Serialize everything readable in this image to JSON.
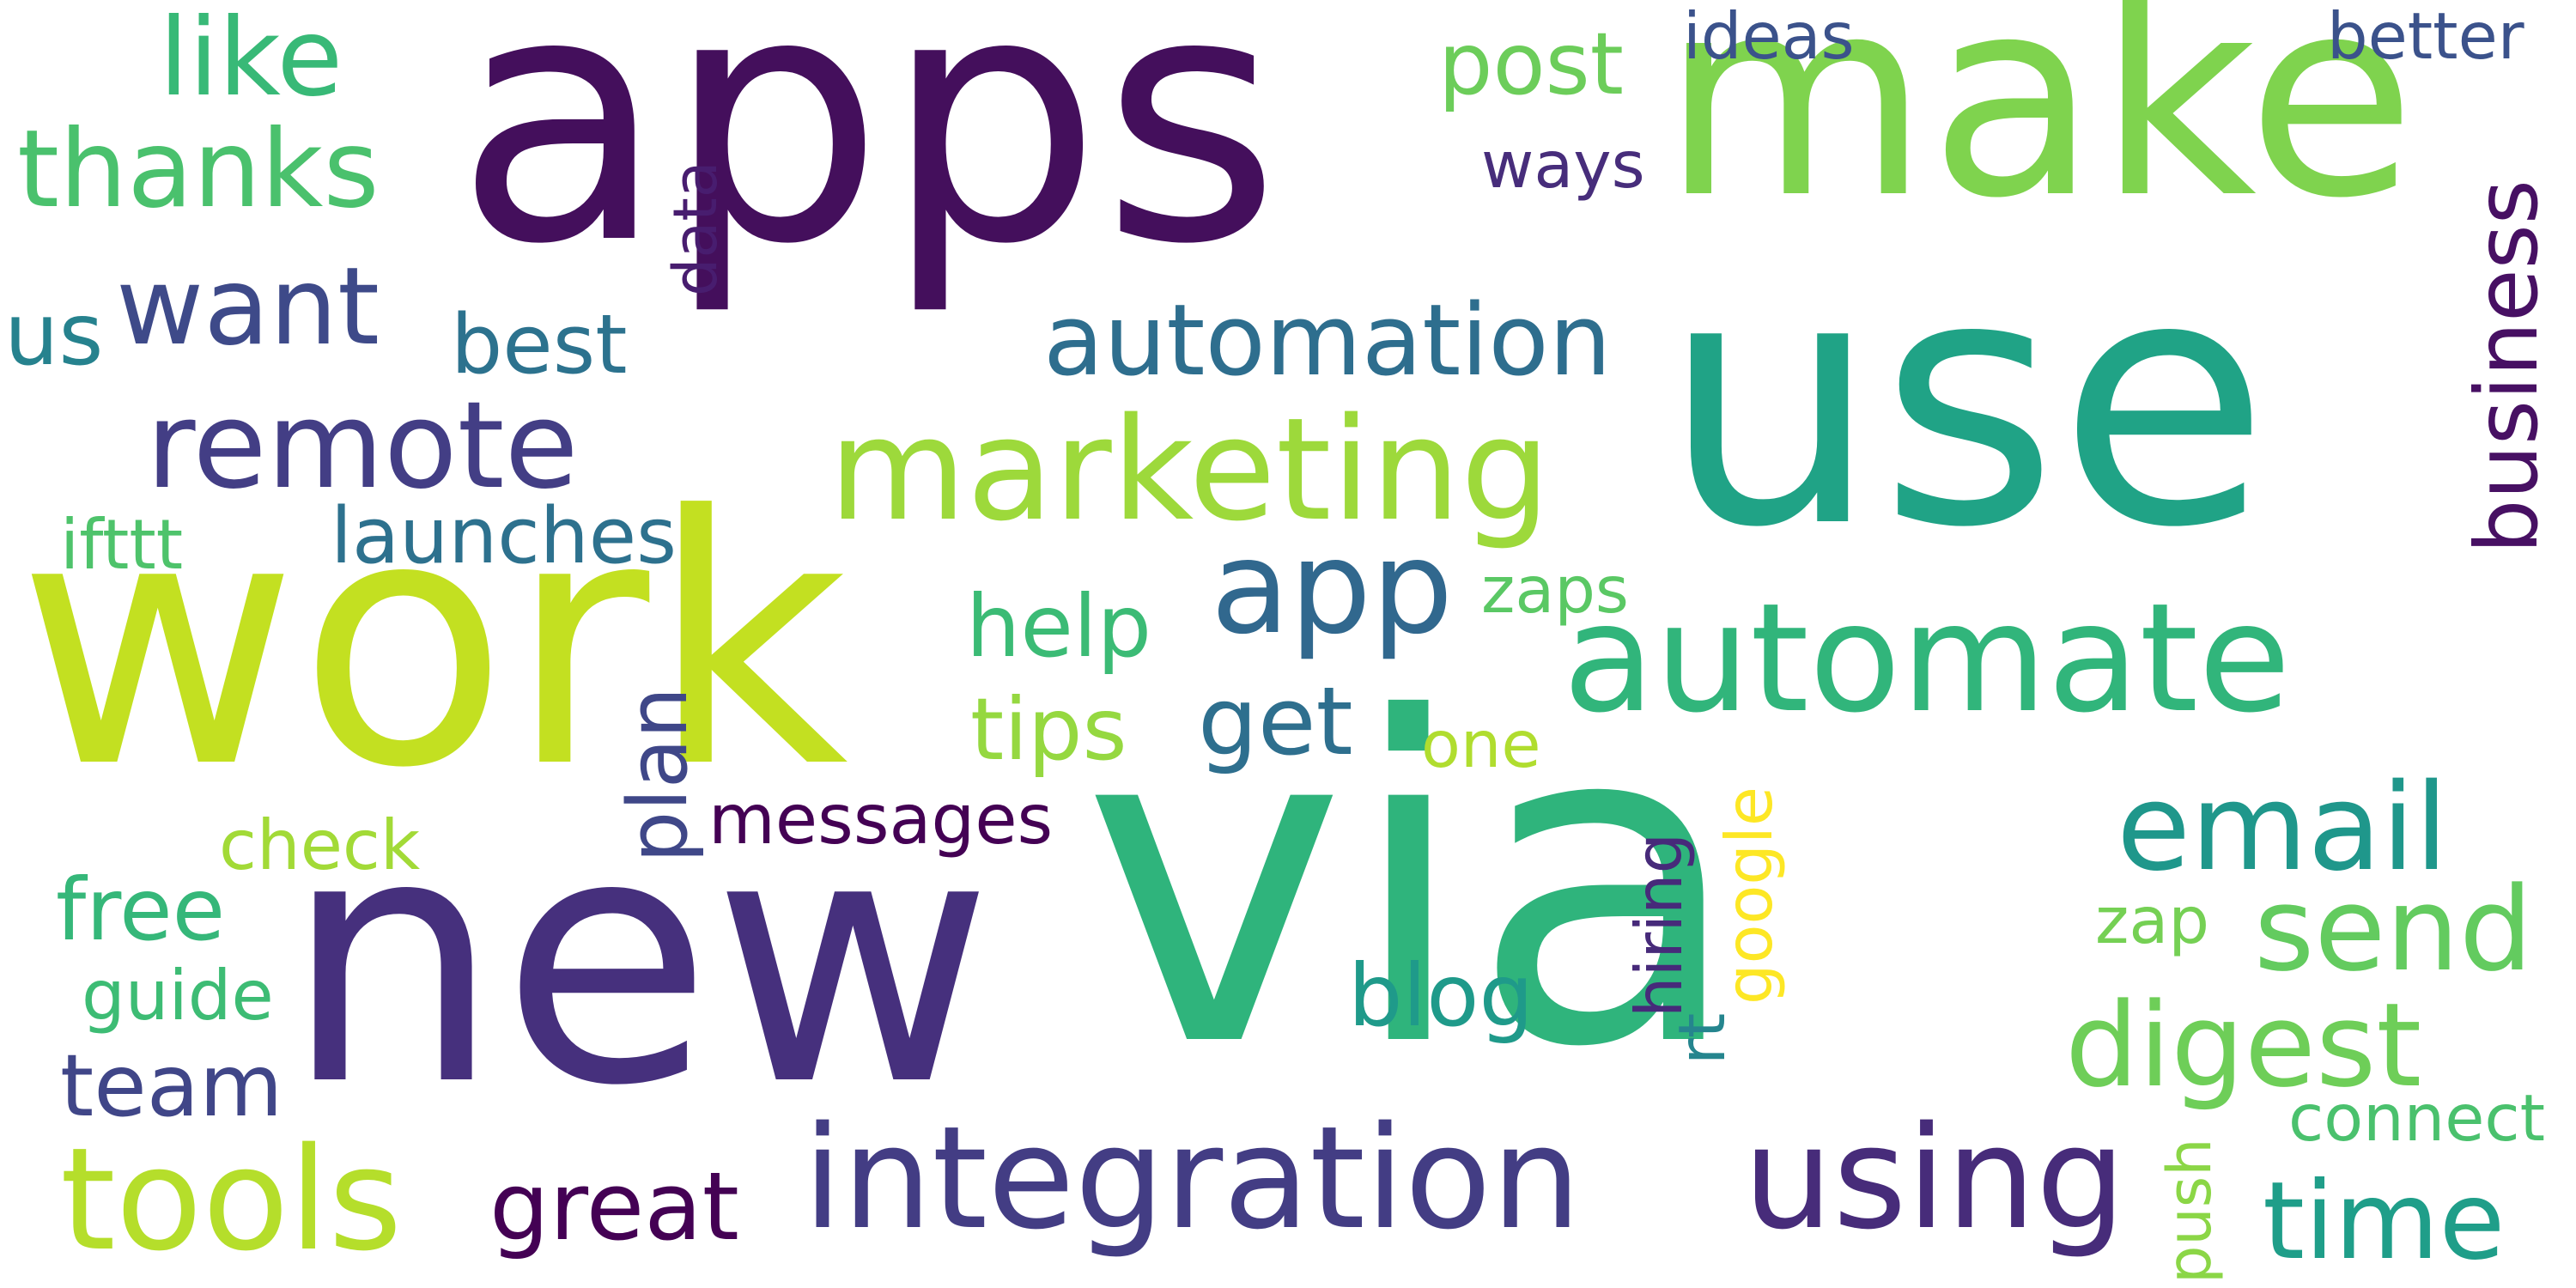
{
  "words": {
    "apps": {
      "text": "apps",
      "color": "#440f5c"
    },
    "make": {
      "text": "make",
      "color": "#7fd34e"
    },
    "use": {
      "text": "use",
      "color": "#20a386"
    },
    "work": {
      "text": "work",
      "color": "#c3e021"
    },
    "new": {
      "text": "new",
      "color": "#46307d"
    },
    "via": {
      "text": "via",
      "color": "#2fb47c"
    },
    "automate": {
      "text": "automate",
      "color": "#31b57b"
    },
    "integration": {
      "text": "integration",
      "color": "#433d84"
    },
    "using": {
      "text": "using",
      "color": "#472c7a"
    },
    "marketing": {
      "text": "marketing",
      "color": "#9dd93b"
    },
    "tools": {
      "text": "tools",
      "color": "#b5de2b"
    },
    "remote": {
      "text": "remote",
      "color": "#433e85"
    },
    "app": {
      "text": "app",
      "color": "#31688e"
    },
    "automation": {
      "text": "automation",
      "color": "#2e6e8e"
    },
    "thanks": {
      "text": "thanks",
      "color": "#4ac16d"
    },
    "like": {
      "text": "like",
      "color": "#38b977"
    },
    "want": {
      "text": "want",
      "color": "#3e4a89"
    },
    "email": {
      "text": "email",
      "color": "#1f978b"
    },
    "digest": {
      "text": "digest",
      "color": "#6ece58"
    },
    "send": {
      "text": "send",
      "color": "#63cb5f"
    },
    "time": {
      "text": "time",
      "color": "#1f9e89"
    },
    "great": {
      "text": "great",
      "color": "#440154"
    },
    "business": {
      "text": "business",
      "color": "#471063"
    },
    "post": {
      "text": "post",
      "color": "#6ccd5a"
    },
    "launches": {
      "text": "launches",
      "color": "#2d718e"
    },
    "free": {
      "text": "free",
      "color": "#35b779"
    },
    "team": {
      "text": "team",
      "color": "#404688"
    },
    "get": {
      "text": "get",
      "color": "#2e6f8e"
    },
    "help": {
      "text": "help",
      "color": "#3bbb75"
    },
    "tips": {
      "text": "tips",
      "color": "#95d840"
    },
    "blog": {
      "text": "blog",
      "color": "#1f9a8a"
    },
    "best": {
      "text": "best",
      "color": "#2c728e"
    },
    "us": {
      "text": "us",
      "color": "#26828e"
    },
    "ifttt": {
      "text": "ifttt",
      "color": "#4ec36b"
    },
    "plan": {
      "text": "plan",
      "color": "#3f4788"
    },
    "messages": {
      "text": "messages",
      "color": "#440154"
    },
    "check": {
      "text": "check",
      "color": "#a2da37"
    },
    "guide": {
      "text": "guide",
      "color": "#3dbc74"
    },
    "zaps": {
      "text": "zaps",
      "color": "#5ac864"
    },
    "one": {
      "text": "one",
      "color": "#b0dd2f"
    },
    "ideas": {
      "text": "ideas",
      "color": "#3b528b"
    },
    "better": {
      "text": "better",
      "color": "#3b528b"
    },
    "ways": {
      "text": "ways",
      "color": "#472d7b"
    },
    "data": {
      "text": "data",
      "color": "#481d6f"
    },
    "hiring": {
      "text": "hiring",
      "color": "#472a7a"
    },
    "google": {
      "text": "google",
      "color": "#fde725"
    },
    "rt": {
      "text": "rt",
      "color": "#25858e"
    },
    "zap": {
      "text": "zap",
      "color": "#75d054"
    },
    "connect": {
      "text": "connect",
      "color": "#4ac16d"
    },
    "push": {
      "text": "push",
      "color": "#8bd646"
    }
  }
}
